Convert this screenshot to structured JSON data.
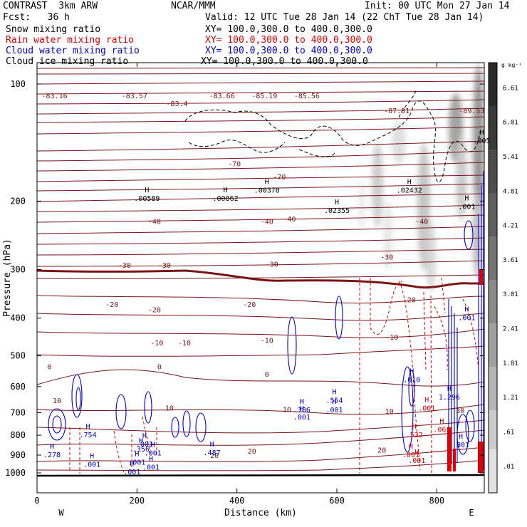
{
  "header": {
    "model": "CONTRAST  3km ARW",
    "fcst": "Fcst:   36 h",
    "center": "NCAR/MMM",
    "init": "Init: 00 UTC Mon 27 Jan 14",
    "valid": "Valid: 12 UTC Tue 28 Jan 14 (22 ChT Tue 28 Jan 14)"
  },
  "legend": [
    {
      "name": "Snow mixing ratio",
      "xy": "XY= 100.0,300.0 to 400.0,300.0",
      "color": "#000000"
    },
    {
      "name": "Rain water mixing ratio",
      "xy": "XY= 100.0,300.0 to 400.0,300.0",
      "color": "#dd0000"
    },
    {
      "name": "Cloud water mixing ratio",
      "xy": "XY= 100.0,300.0 to 400.0,300.0",
      "color": "#0000cc"
    },
    {
      "name": "Cloud ice mixing ratio",
      "xy": "XY= 100.0,300.0 to 400.0,300.0",
      "color": "#000000"
    }
  ],
  "colorbar": {
    "units": "g kg⁻¹",
    "ticks": [
      "6.61",
      "6.01",
      "5.41",
      "4.81",
      "4.21",
      "3.61",
      "3.01",
      "2.41",
      "1.81",
      "1.21",
      ".61",
      ".01"
    ]
  },
  "chart_data": {
    "type": "cross-section",
    "xlabel": "Distance (km)",
    "ylabel": "Pressure (hPa)",
    "xlim": [
      0,
      895
    ],
    "ylim": [
      1000,
      100
    ],
    "y_scale": "log",
    "x_ticks": [
      0,
      200,
      400,
      600,
      800
    ],
    "y_ticks": [
      100,
      200,
      300,
      400,
      500,
      600,
      700,
      800,
      900,
      1000
    ],
    "x_end_labels": {
      "left": "W",
      "right": "E"
    },
    "temperature_labels": [
      {
        "x": 35,
        "p": 107,
        "text": "-83.16"
      },
      {
        "x": 195,
        "p": 107,
        "text": "-83.57"
      },
      {
        "x": 280,
        "p": 112,
        "text": "-83.4"
      },
      {
        "x": 370,
        "p": 107,
        "text": "-83.66"
      },
      {
        "x": 455,
        "p": 107,
        "text": "-85.19"
      },
      {
        "x": 540,
        "p": 107,
        "text": "-85.56"
      },
      {
        "x": 720,
        "p": 117,
        "text": "-87.81"
      },
      {
        "x": 870,
        "p": 117,
        "text": "-89.53"
      },
      {
        "x": 395,
        "p": 160,
        "text": "-70"
      },
      {
        "x": 485,
        "p": 173,
        "text": "-70"
      },
      {
        "x": 460,
        "p": 225,
        "text": "-40"
      },
      {
        "x": 505,
        "p": 222,
        "text": "-40"
      },
      {
        "x": 235,
        "p": 225,
        "text": "-40"
      },
      {
        "x": 770,
        "p": 225,
        "text": "-40"
      },
      {
        "x": 175,
        "p": 292,
        "text": "-30"
      },
      {
        "x": 255,
        "p": 292,
        "text": "-30"
      },
      {
        "x": 470,
        "p": 290,
        "text": "-30"
      },
      {
        "x": 700,
        "p": 278,
        "text": "-30"
      },
      {
        "x": 150,
        "p": 368,
        "text": "-20"
      },
      {
        "x": 235,
        "p": 380,
        "text": "-20"
      },
      {
        "x": 425,
        "p": 368,
        "text": "-20"
      },
      {
        "x": 745,
        "p": 358,
        "text": "-20"
      },
      {
        "x": 240,
        "p": 462,
        "text": "-10"
      },
      {
        "x": 295,
        "p": 462,
        "text": "-10"
      },
      {
        "x": 460,
        "p": 455,
        "text": "-10"
      },
      {
        "x": 710,
        "p": 447,
        "text": "-10"
      },
      {
        "x": 25,
        "p": 532,
        "text": "0"
      },
      {
        "x": 245,
        "p": 532,
        "text": "0"
      },
      {
        "x": 460,
        "p": 557,
        "text": "0"
      },
      {
        "x": 40,
        "p": 650,
        "text": "10"
      },
      {
        "x": 265,
        "p": 680,
        "text": "10"
      },
      {
        "x": 500,
        "p": 685,
        "text": "10"
      },
      {
        "x": 705,
        "p": 693,
        "text": "10"
      },
      {
        "x": 355,
        "p": 900,
        "text": "20"
      },
      {
        "x": 430,
        "p": 878,
        "text": "20"
      },
      {
        "x": 690,
        "p": 872,
        "text": "20"
      },
      {
        "x": 847,
        "p": 690,
        "text": "30"
      }
    ],
    "maxima": [
      {
        "x": 220,
        "p": 197,
        "text": ".00589"
      },
      {
        "x": 377,
        "p": 197,
        "text": ".00862"
      },
      {
        "x": 460,
        "p": 188,
        "text": ".00378"
      },
      {
        "x": 600,
        "p": 212,
        "text": ".02355"
      },
      {
        "x": 745,
        "p": 188,
        "text": ".02432"
      },
      {
        "x": 860,
        "p": 207,
        "text": ".001"
      },
      {
        "x": 890,
        "p": 140,
        "text": ".005"
      },
      {
        "x": 30,
        "p": 900,
        "text": ".278"
      },
      {
        "x": 102,
        "p": 800,
        "text": ".754"
      },
      {
        "x": 208,
        "p": 870,
        "text": ".356"
      },
      {
        "x": 215,
        "p": 845,
        "text": ".001"
      },
      {
        "x": 350,
        "p": 888,
        "text": ".487"
      },
      {
        "x": 530,
        "p": 690,
        "text": ".186"
      },
      {
        "x": 530,
        "p": 720,
        "text": ".001"
      },
      {
        "x": 595,
        "p": 652,
        "text": ".554"
      },
      {
        "x": 595,
        "p": 690,
        "text": ".001"
      },
      {
        "x": 750,
        "p": 577,
        "text": ".010"
      },
      {
        "x": 755,
        "p": 800,
        "text": ".532"
      },
      {
        "x": 780,
        "p": 683,
        "text": ".001"
      },
      {
        "x": 810,
        "p": 775,
        "text": ".061"
      },
      {
        "x": 825,
        "p": 640,
        "text": "1.296"
      },
      {
        "x": 848,
        "p": 848,
        "text": ".001"
      },
      {
        "x": 760,
        "p": 930,
        "text": ".001"
      },
      {
        "x": 860,
        "p": 400,
        "text": ".001"
      },
      {
        "x": 110,
        "p": 953,
        "text": ".001"
      },
      {
        "x": 200,
        "p": 940,
        "text": ".001"
      },
      {
        "x": 228,
        "p": 968,
        "text": ".001"
      },
      {
        "x": 232,
        "p": 890,
        "text": ".001"
      },
      {
        "x": 190,
        "p": 995,
        "text": ".001"
      },
      {
        "x": 748,
        "p": 900,
        "text": ".001"
      }
    ]
  }
}
